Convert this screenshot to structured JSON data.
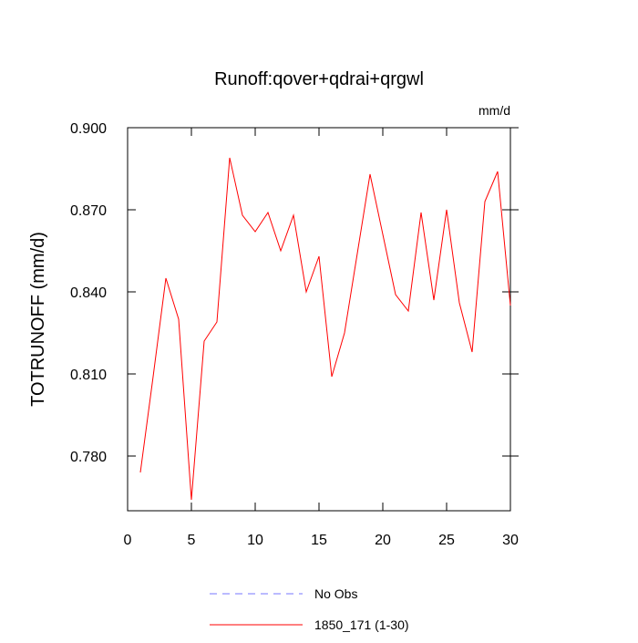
{
  "chart_data": {
    "type": "line",
    "title": "Runoff:qover+qdrai+qrgwl",
    "units": "mm/d",
    "y_label": "TOTRUNOFF  (mm/d)",
    "x": [
      1,
      2,
      3,
      4,
      5,
      6,
      7,
      8,
      9,
      10,
      11,
      12,
      13,
      14,
      15,
      16,
      17,
      18,
      19,
      20,
      21,
      22,
      23,
      24,
      25,
      26,
      27,
      28,
      29,
      30
    ],
    "series": [
      {
        "name": "No Obs",
        "color": "#7777ff",
        "dashed": true,
        "values": [
          null,
          null,
          null,
          null,
          null,
          null,
          null,
          null,
          null,
          null,
          null,
          null,
          null,
          null,
          null,
          null,
          null,
          null,
          null,
          null,
          null,
          null,
          null,
          null,
          null,
          null,
          null,
          null,
          null,
          null
        ]
      },
      {
        "name": "1850_171 (1-30)",
        "color": "#ff0000",
        "dashed": false,
        "values": [
          0.774,
          0.809,
          0.845,
          0.83,
          0.764,
          0.822,
          0.829,
          0.889,
          0.868,
          0.862,
          0.869,
          0.855,
          0.868,
          0.84,
          0.853,
          0.809,
          0.825,
          0.854,
          0.883,
          0.861,
          0.839,
          0.833,
          0.869,
          0.837,
          0.87,
          0.836,
          0.818,
          0.873,
          0.884,
          0.835
        ]
      }
    ],
    "xlim": [
      0,
      30
    ],
    "xticks": [
      0,
      5,
      10,
      15,
      20,
      25,
      30
    ],
    "ylim": [
      0.76,
      0.9
    ],
    "yticks": [
      {
        "value": 0.78,
        "label": "0.780"
      },
      {
        "value": 0.81,
        "label": "0.810"
      },
      {
        "value": 0.84,
        "label": "0.840"
      },
      {
        "value": 0.87,
        "label": "0.870"
      },
      {
        "value": 0.9,
        "label": "0.900"
      }
    ]
  }
}
